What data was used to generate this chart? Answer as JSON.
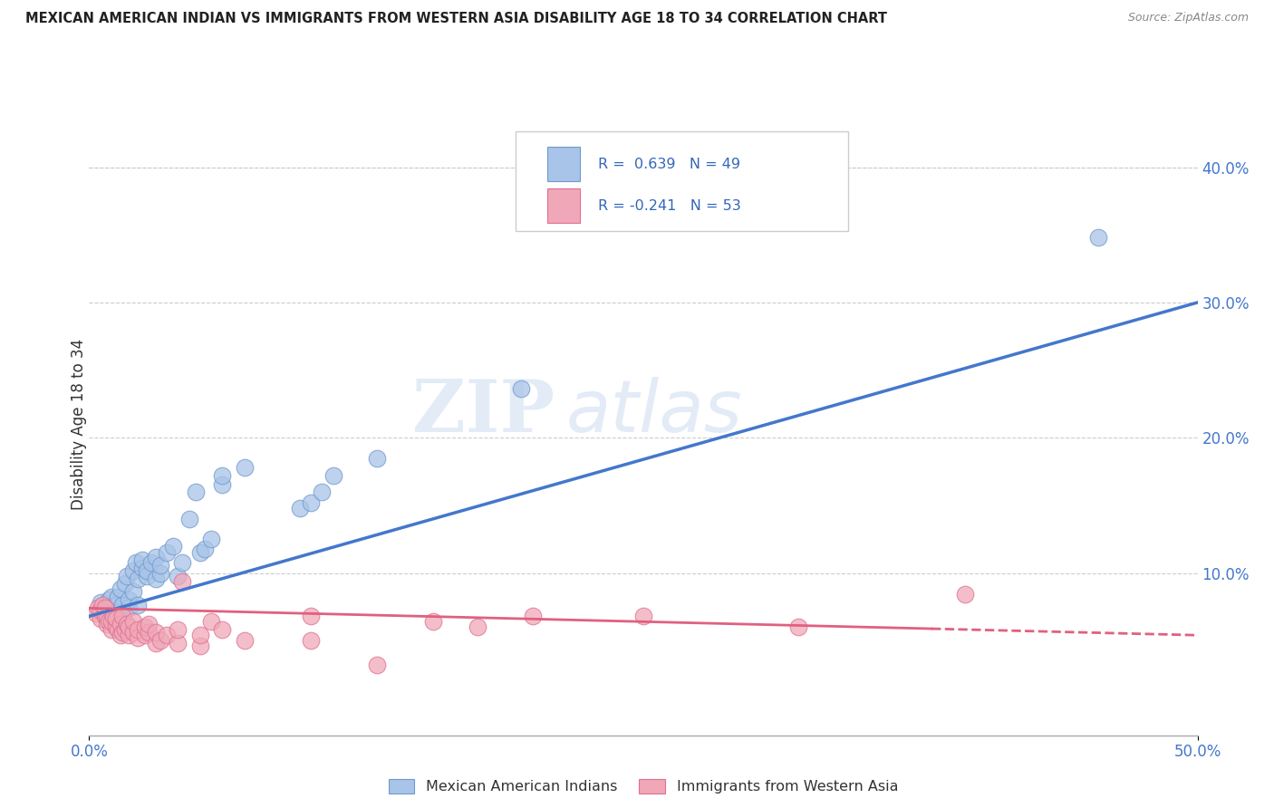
{
  "title": "MEXICAN AMERICAN INDIAN VS IMMIGRANTS FROM WESTERN ASIA DISABILITY AGE 18 TO 34 CORRELATION CHART",
  "source": "Source: ZipAtlas.com",
  "ylabel": "Disability Age 18 to 34",
  "xlim": [
    0.0,
    0.5
  ],
  "ylim": [
    -0.02,
    0.44
  ],
  "plot_ylim": [
    -0.02,
    0.44
  ],
  "x_ticks": [
    0.0,
    0.5
  ],
  "x_tick_labels": [
    "0.0%",
    "50.0%"
  ],
  "y_ticks_right": [
    0.1,
    0.2,
    0.3,
    0.4
  ],
  "y_tick_labels_right": [
    "10.0%",
    "20.0%",
    "30.0%",
    "40.0%"
  ],
  "watermark_text": "ZIPatlas",
  "blue_color": "#A8C4E8",
  "pink_color": "#F0A8B8",
  "blue_edge_color": "#7099CC",
  "pink_edge_color": "#E07090",
  "blue_line_color": "#4477CC",
  "pink_line_color": "#E06080",
  "legend_text_color": "#3366BB",
  "blue_scatter": [
    [
      0.005,
      0.078
    ],
    [
      0.007,
      0.072
    ],
    [
      0.008,
      0.076
    ],
    [
      0.009,
      0.08
    ],
    [
      0.01,
      0.074
    ],
    [
      0.01,
      0.082
    ],
    [
      0.012,
      0.07
    ],
    [
      0.012,
      0.076
    ],
    [
      0.013,
      0.082
    ],
    [
      0.014,
      0.088
    ],
    [
      0.015,
      0.068
    ],
    [
      0.015,
      0.076
    ],
    [
      0.016,
      0.092
    ],
    [
      0.017,
      0.098
    ],
    [
      0.018,
      0.074
    ],
    [
      0.018,
      0.08
    ],
    [
      0.02,
      0.086
    ],
    [
      0.02,
      0.102
    ],
    [
      0.021,
      0.108
    ],
    [
      0.022,
      0.076
    ],
    [
      0.022,
      0.096
    ],
    [
      0.024,
      0.104
    ],
    [
      0.024,
      0.11
    ],
    [
      0.026,
      0.098
    ],
    [
      0.026,
      0.102
    ],
    [
      0.028,
      0.108
    ],
    [
      0.03,
      0.096
    ],
    [
      0.03,
      0.112
    ],
    [
      0.032,
      0.1
    ],
    [
      0.032,
      0.106
    ],
    [
      0.035,
      0.115
    ],
    [
      0.038,
      0.12
    ],
    [
      0.04,
      0.098
    ],
    [
      0.042,
      0.108
    ],
    [
      0.045,
      0.14
    ],
    [
      0.048,
      0.16
    ],
    [
      0.05,
      0.115
    ],
    [
      0.052,
      0.118
    ],
    [
      0.055,
      0.125
    ],
    [
      0.06,
      0.165
    ],
    [
      0.06,
      0.172
    ],
    [
      0.07,
      0.178
    ],
    [
      0.095,
      0.148
    ],
    [
      0.1,
      0.152
    ],
    [
      0.105,
      0.16
    ],
    [
      0.11,
      0.172
    ],
    [
      0.13,
      0.185
    ],
    [
      0.195,
      0.236
    ],
    [
      0.455,
      0.348
    ]
  ],
  "pink_scatter": [
    [
      0.003,
      0.07
    ],
    [
      0.004,
      0.074
    ],
    [
      0.005,
      0.066
    ],
    [
      0.005,
      0.072
    ],
    [
      0.006,
      0.076
    ],
    [
      0.007,
      0.068
    ],
    [
      0.007,
      0.074
    ],
    [
      0.008,
      0.062
    ],
    [
      0.008,
      0.068
    ],
    [
      0.009,
      0.064
    ],
    [
      0.01,
      0.058
    ],
    [
      0.01,
      0.064
    ],
    [
      0.011,
      0.068
    ],
    [
      0.012,
      0.06
    ],
    [
      0.012,
      0.066
    ],
    [
      0.013,
      0.058
    ],
    [
      0.014,
      0.054
    ],
    [
      0.014,
      0.062
    ],
    [
      0.015,
      0.056
    ],
    [
      0.015,
      0.068
    ],
    [
      0.016,
      0.058
    ],
    [
      0.017,
      0.062
    ],
    [
      0.018,
      0.054
    ],
    [
      0.018,
      0.06
    ],
    [
      0.02,
      0.056
    ],
    [
      0.02,
      0.064
    ],
    [
      0.022,
      0.052
    ],
    [
      0.022,
      0.058
    ],
    [
      0.025,
      0.054
    ],
    [
      0.025,
      0.06
    ],
    [
      0.027,
      0.056
    ],
    [
      0.027,
      0.062
    ],
    [
      0.03,
      0.048
    ],
    [
      0.03,
      0.056
    ],
    [
      0.032,
      0.05
    ],
    [
      0.035,
      0.054
    ],
    [
      0.04,
      0.048
    ],
    [
      0.04,
      0.058
    ],
    [
      0.042,
      0.094
    ],
    [
      0.05,
      0.046
    ],
    [
      0.05,
      0.054
    ],
    [
      0.055,
      0.064
    ],
    [
      0.06,
      0.058
    ],
    [
      0.07,
      0.05
    ],
    [
      0.1,
      0.05
    ],
    [
      0.1,
      0.068
    ],
    [
      0.13,
      0.032
    ],
    [
      0.155,
      0.064
    ],
    [
      0.175,
      0.06
    ],
    [
      0.2,
      0.068
    ],
    [
      0.25,
      0.068
    ],
    [
      0.32,
      0.06
    ],
    [
      0.395,
      0.084
    ]
  ],
  "blue_trendline_x": [
    0.0,
    0.5
  ],
  "blue_trendline_y": [
    0.068,
    0.3
  ],
  "pink_trendline_x": [
    0.0,
    0.5
  ],
  "pink_trendline_y": [
    0.074,
    0.054
  ]
}
